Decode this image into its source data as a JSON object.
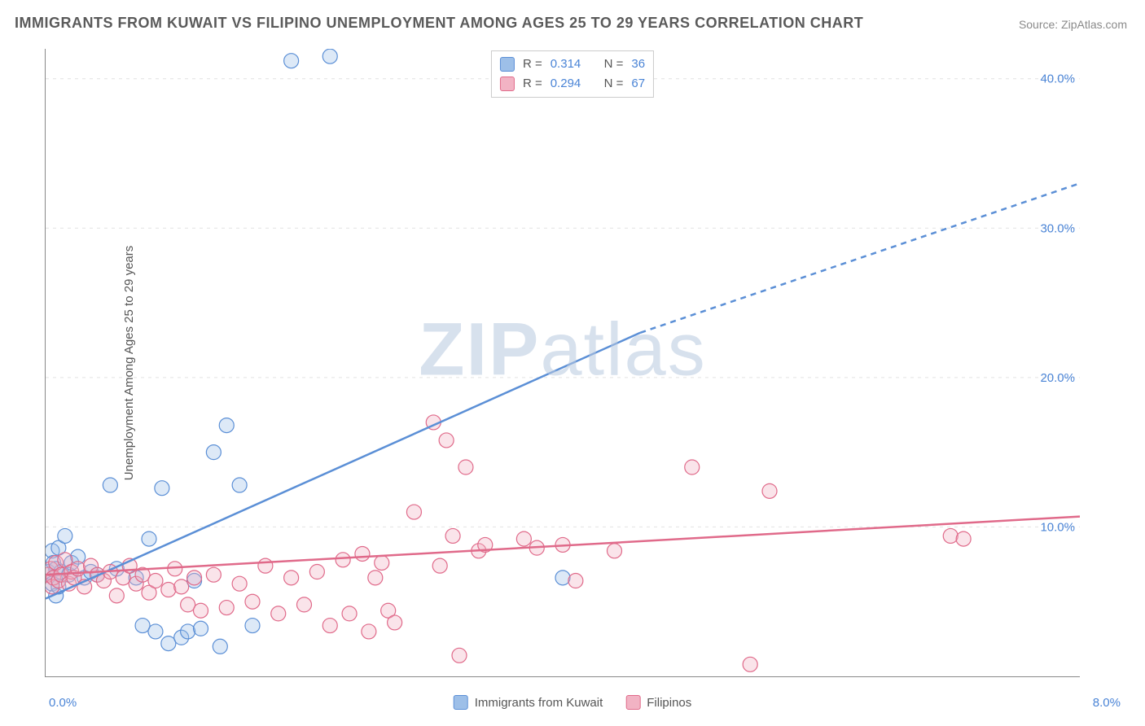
{
  "title": "IMMIGRANTS FROM KUWAIT VS FILIPINO UNEMPLOYMENT AMONG AGES 25 TO 29 YEARS CORRELATION CHART",
  "source": "Source: ZipAtlas.com",
  "watermark_a": "ZIP",
  "watermark_b": "atlas",
  "ylabel": "Unemployment Among Ages 25 to 29 years",
  "chart": {
    "type": "scatter",
    "background_color": "#ffffff",
    "grid_color": "#e2e2e2",
    "axis_color": "#888888",
    "xlim": [
      0,
      8
    ],
    "ylim": [
      0,
      42
    ],
    "x_ticks": [
      0.0,
      1.0,
      2.0,
      3.0,
      4.0,
      5.0,
      6.0,
      7.0,
      8.0
    ],
    "y_grid": [
      10,
      20,
      30,
      40
    ],
    "y_tick_labels": [
      "10.0%",
      "20.0%",
      "30.0%",
      "40.0%"
    ],
    "x_min_label": "0.0%",
    "x_max_label": "8.0%",
    "marker_radius": 9,
    "marker_fill_opacity": 0.35,
    "marker_stroke_width": 1.2,
    "trend_line_width": 2.5,
    "series": [
      {
        "id": "kuwait",
        "label": "Immigrants from Kuwait",
        "color_stroke": "#5b8fd6",
        "color_fill": "#9dbfe8",
        "r_value": "0.314",
        "n_value": "36",
        "trend": {
          "x0": 0.0,
          "y0": 5.2,
          "x1": 4.6,
          "y1": 23.0,
          "x2": 8.0,
          "y2": 33.0
        },
        "points": [
          [
            0.02,
            7.0
          ],
          [
            0.05,
            6.2
          ],
          [
            0.05,
            8.4
          ],
          [
            0.06,
            7.6
          ],
          [
            0.08,
            7.2
          ],
          [
            0.08,
            5.4
          ],
          [
            0.1,
            8.6
          ],
          [
            0.1,
            6.0
          ],
          [
            0.12,
            7.0
          ],
          [
            0.15,
            9.4
          ],
          [
            0.18,
            6.8
          ],
          [
            0.2,
            7.6
          ],
          [
            0.25,
            8.0
          ],
          [
            0.3,
            6.6
          ],
          [
            0.35,
            7.0
          ],
          [
            0.4,
            6.8
          ],
          [
            0.5,
            12.8
          ],
          [
            0.55,
            7.2
          ],
          [
            0.7,
            6.6
          ],
          [
            0.75,
            3.4
          ],
          [
            0.8,
            9.2
          ],
          [
            0.85,
            3.0
          ],
          [
            0.9,
            12.6
          ],
          [
            0.95,
            2.2
          ],
          [
            1.05,
            2.6
          ],
          [
            1.1,
            3.0
          ],
          [
            1.15,
            6.4
          ],
          [
            1.2,
            3.2
          ],
          [
            1.3,
            15.0
          ],
          [
            1.35,
            2.0
          ],
          [
            1.4,
            16.8
          ],
          [
            1.5,
            12.8
          ],
          [
            1.6,
            3.4
          ],
          [
            1.9,
            41.2
          ],
          [
            2.2,
            41.5
          ],
          [
            4.0,
            6.6
          ]
        ]
      },
      {
        "id": "filipinos",
        "label": "Filipinos",
        "color_stroke": "#e06a8a",
        "color_fill": "#f2b3c4",
        "r_value": "0.294",
        "n_value": "67",
        "trend": {
          "x0": 0.0,
          "y0": 6.8,
          "x1": 8.0,
          "y1": 10.7
        },
        "points": [
          [
            0.02,
            6.8
          ],
          [
            0.04,
            7.2
          ],
          [
            0.05,
            6.0
          ],
          [
            0.06,
            6.6
          ],
          [
            0.08,
            7.6
          ],
          [
            0.1,
            6.4
          ],
          [
            0.12,
            6.8
          ],
          [
            0.15,
            7.8
          ],
          [
            0.18,
            6.2
          ],
          [
            0.2,
            7.0
          ],
          [
            0.22,
            6.6
          ],
          [
            0.25,
            7.2
          ],
          [
            0.3,
            6.0
          ],
          [
            0.35,
            7.4
          ],
          [
            0.4,
            6.8
          ],
          [
            0.45,
            6.4
          ],
          [
            0.5,
            7.0
          ],
          [
            0.55,
            5.4
          ],
          [
            0.6,
            6.6
          ],
          [
            0.65,
            7.4
          ],
          [
            0.7,
            6.2
          ],
          [
            0.75,
            6.8
          ],
          [
            0.8,
            5.6
          ],
          [
            0.85,
            6.4
          ],
          [
            0.95,
            5.8
          ],
          [
            1.0,
            7.2
          ],
          [
            1.05,
            6.0
          ],
          [
            1.1,
            4.8
          ],
          [
            1.15,
            6.6
          ],
          [
            1.2,
            4.4
          ],
          [
            1.3,
            6.8
          ],
          [
            1.4,
            4.6
          ],
          [
            1.5,
            6.2
          ],
          [
            1.6,
            5.0
          ],
          [
            1.7,
            7.4
          ],
          [
            1.8,
            4.2
          ],
          [
            1.9,
            6.6
          ],
          [
            2.0,
            4.8
          ],
          [
            2.1,
            7.0
          ],
          [
            2.2,
            3.4
          ],
          [
            2.3,
            7.8
          ],
          [
            2.35,
            4.2
          ],
          [
            2.45,
            8.2
          ],
          [
            2.5,
            3.0
          ],
          [
            2.55,
            6.6
          ],
          [
            2.6,
            7.6
          ],
          [
            2.65,
            4.4
          ],
          [
            2.7,
            3.6
          ],
          [
            2.85,
            11.0
          ],
          [
            3.0,
            17.0
          ],
          [
            3.05,
            7.4
          ],
          [
            3.1,
            15.8
          ],
          [
            3.15,
            9.4
          ],
          [
            3.2,
            1.4
          ],
          [
            3.25,
            14.0
          ],
          [
            3.35,
            8.4
          ],
          [
            3.4,
            8.8
          ],
          [
            3.7,
            9.2
          ],
          [
            3.8,
            8.6
          ],
          [
            4.0,
            8.8
          ],
          [
            4.1,
            6.4
          ],
          [
            4.4,
            8.4
          ],
          [
            5.0,
            14.0
          ],
          [
            5.45,
            0.8
          ],
          [
            5.6,
            12.4
          ],
          [
            7.0,
            9.4
          ],
          [
            7.1,
            9.2
          ]
        ]
      }
    ]
  },
  "legend_top_labels": {
    "r": "R =",
    "n": "N ="
  },
  "colors": {
    "title": "#5a5a5a",
    "source": "#8a8a8a",
    "value_text": "#4a84d6",
    "label_text": "#555555",
    "watermark": "#b8c9e0"
  },
  "fontsize": {
    "title": 18,
    "source": 14,
    "axis_label": 15,
    "tick": 14,
    "legend": 15,
    "watermark": 92
  }
}
